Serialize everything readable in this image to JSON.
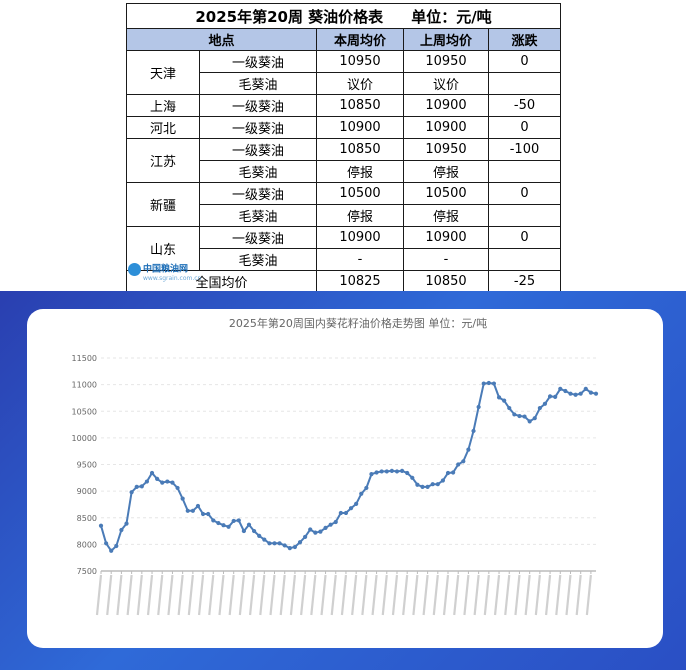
{
  "table": {
    "title": "2025年第20周 葵油价格表",
    "unit": "单位：元/吨",
    "headers": [
      "地点",
      "本周均价",
      "上周均价",
      "涨跌"
    ],
    "rows": [
      {
        "region": "天津",
        "grade": "一级葵油",
        "this_week": "10950",
        "last_week": "10950",
        "change": "0"
      },
      {
        "region": "",
        "grade": "毛葵油",
        "this_week": "议价",
        "last_week": "议价",
        "change": ""
      },
      {
        "region": "上海",
        "grade": "一级葵油",
        "this_week": "10850",
        "last_week": "10900",
        "change": "-50"
      },
      {
        "region": "河北",
        "grade": "一级葵油",
        "this_week": "10900",
        "last_week": "10900",
        "change": "0"
      },
      {
        "region": "江苏",
        "grade": "一级葵油",
        "this_week": "10850",
        "last_week": "10950",
        "change": "-100"
      },
      {
        "region": "",
        "grade": "毛葵油",
        "this_week": "停报",
        "last_week": "停报",
        "change": ""
      },
      {
        "region": "新疆",
        "grade": "一级葵油",
        "this_week": "10500",
        "last_week": "10500",
        "change": "0"
      },
      {
        "region": "",
        "grade": "毛葵油",
        "this_week": "停报",
        "last_week": "停报",
        "change": ""
      },
      {
        "region": "山东",
        "grade": "一级葵油",
        "this_week": "10900",
        "last_week": "10900",
        "change": "0"
      },
      {
        "region": "",
        "grade": "毛葵油",
        "this_week": "-",
        "last_week": "-",
        "change": ""
      }
    ],
    "national": {
      "label": "全国均价",
      "this_week": "10825",
      "last_week": "10850",
      "change": "-25"
    }
  },
  "watermark": {
    "name": "中国粮油网",
    "url": "www.sgrain.com.cn"
  },
  "colors": {
    "header_bg": "#b4c6e7",
    "line": "#4a7bb7",
    "bg_gradient": [
      "#2a3fb0",
      "#2f6ad8"
    ]
  },
  "chart_data": {
    "type": "line",
    "title": "2025年第20周国内葵花籽油价格走势图 单位：元/吨",
    "ylim": [
      7500,
      11500
    ],
    "yticks": [
      7500,
      8000,
      8500,
      9000,
      9500,
      10000,
      10500,
      11000,
      11500
    ],
    "grid": true,
    "x_labels_legible": false,
    "series": [
      {
        "values": [
          8350,
          8020,
          7880,
          7970,
          8270,
          8390,
          8980,
          9080,
          9090,
          9180,
          9340,
          9230,
          9160,
          9180,
          9160,
          9060,
          8860,
          8630,
          8630,
          8720,
          8570,
          8570,
          8450,
          8400,
          8360,
          8330,
          8440,
          8450,
          8250,
          8370,
          8250,
          8160,
          8090,
          8020,
          8020,
          8020,
          7980,
          7930,
          7950,
          8040,
          8140,
          8280,
          8220,
          8240,
          8310,
          8370,
          8420,
          8590,
          8590,
          8680,
          8760,
          8950,
          9060,
          9320,
          9350,
          9370,
          9370,
          9380,
          9370,
          9380,
          9340,
          9250,
          9120,
          9080,
          9080,
          9130,
          9130,
          9200,
          9340,
          9350,
          9500,
          9560,
          9780,
          10130,
          10580,
          11020,
          11030,
          11020,
          10760,
          10700,
          10560,
          10440,
          10410,
          10400,
          10310,
          10370,
          10560,
          10640,
          10780,
          10770,
          10920,
          10880,
          10830,
          10810,
          10830,
          10920,
          10850,
          10830
        ]
      }
    ]
  }
}
